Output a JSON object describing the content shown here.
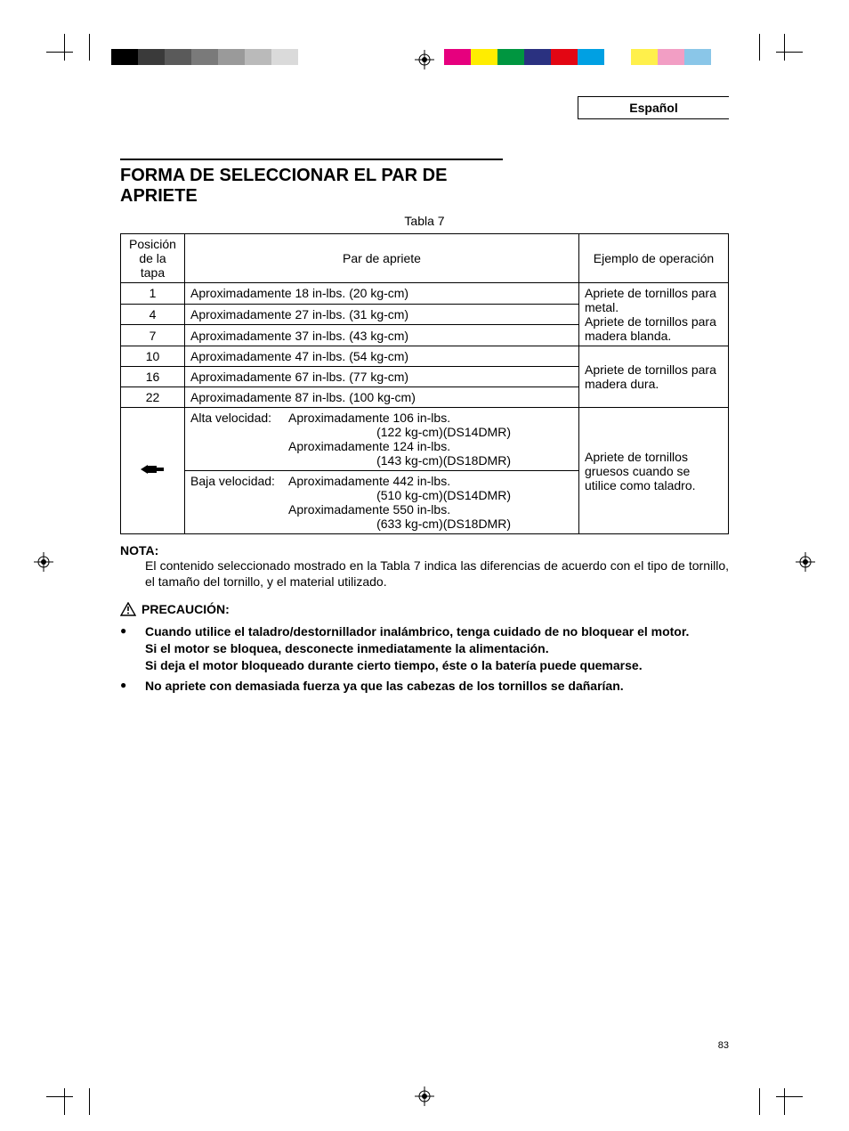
{
  "printer_marks": {
    "left_bar_colors": [
      "#000000",
      "#3a3a3a",
      "#5a5a5a",
      "#7a7a7a",
      "#9a9a9a",
      "#bababa",
      "#dadada",
      "#ffffff"
    ],
    "right_bar_colors": [
      "#e6007e",
      "#ffed00",
      "#009640",
      "#2a3180",
      "#e30613",
      "#00a0e3",
      "#ffffff",
      "#fff04b",
      "#f29ec4",
      "#8ac6e8",
      "#ffffff"
    ]
  },
  "language_label": "Español",
  "section_title": "FORMA DE SELECCIONAR EL PAR DE APRIETE",
  "table": {
    "caption": "Tabla 7",
    "headers": {
      "pos": "Posición de la tapa",
      "torque": "Par de apriete",
      "example": "Ejemplo de operación"
    },
    "rows": [
      {
        "pos": "1",
        "torque": "Aproximadamente 18 in-lbs. (20 kg-cm)"
      },
      {
        "pos": "4",
        "torque": "Aproximadamente 27 in-lbs. (31 kg-cm)"
      },
      {
        "pos": "7",
        "torque": "Aproximadamente 37 in-lbs. (43 kg-cm)"
      },
      {
        "pos": "10",
        "torque": "Aproximadamente 47 in-lbs. (54 kg-cm)"
      },
      {
        "pos": "16",
        "torque": "Aproximadamente 67 in-lbs. (77 kg-cm)"
      },
      {
        "pos": "22",
        "torque": "Aproximadamente 87 in-lbs. (100 kg-cm)"
      }
    ],
    "example_group1": "Apriete de tornillos para metal.\nApriete de tornillos para madera blanda.",
    "example_group2": "Apriete de tornillos para madera dura.",
    "drill_row": {
      "high_label": "Alta velocidad:",
      "high_l1": "Aproximadamente 106 in-lbs.",
      "high_l2": "(122 kg-cm)(DS14DMR)",
      "high_l3": "Aproximadamente 124 in-lbs.",
      "high_l4": "(143 kg-cm)(DS18DMR)",
      "low_label": "Baja velocidad:",
      "low_l1": "Aproximadamente 442 in-lbs.",
      "low_l2": "(510 kg-cm)(DS14DMR)",
      "low_l3": "Aproximadamente 550 in-lbs.",
      "low_l4": "(633 kg-cm)(DS18DMR)",
      "example": "Apriete de tornillos gruesos cuando se utilice como taladro."
    }
  },
  "note": {
    "head": "NOTA:",
    "body": "El contenido seleccionado mostrado en la Tabla 7 indica las diferencias de acuerdo con el tipo de tornillo, el tamaño del tornillo, y el material utilizado."
  },
  "precaution": {
    "head": "PRECAUCIÓN:",
    "items": [
      "Cuando utilice el taladro/destornillador inalámbrico, tenga cuidado de no bloquear el motor.\nSi el motor se bloquea, desconecte inmediatamente la alimentación.\nSi deja el motor bloqueado durante cierto tiempo, éste o la batería puede quemarse.",
      "No apriete con demasiada fuerza ya que las cabezas de los tornillos se dañarían."
    ]
  },
  "page_number": "83"
}
